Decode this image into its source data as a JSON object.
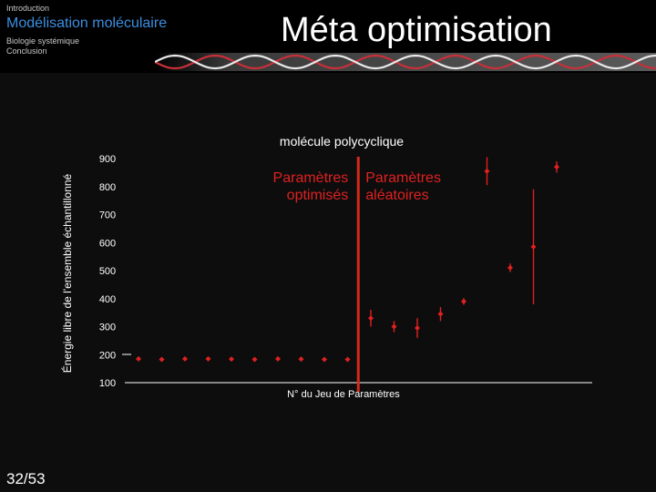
{
  "nav": {
    "intro": "Introduction",
    "active": "Modélisation moléculaire",
    "bio": "Biologie systémique",
    "conclusion": "Conclusion"
  },
  "slide": {
    "title": "Méta optimisation",
    "page": "32/53"
  },
  "chart_data": {
    "type": "scatter",
    "title": "molécule polycyclique",
    "xlabel": "N° du Jeu de Paramètres",
    "ylabel": "Énergie libre de l'ensemble échantillonné",
    "ylim": [
      100,
      900
    ],
    "yticks": [
      "900",
      "800",
      "700",
      "600",
      "500",
      "400",
      "300",
      "200",
      "100"
    ],
    "grid": false,
    "annotations": {
      "left": "Paramètres optimisés",
      "right": "Paramètres aléatoires"
    },
    "split_after_index": 10,
    "series": [
      {
        "x": [
          1,
          2,
          3,
          4,
          5,
          6,
          7,
          8,
          9,
          10,
          11,
          12,
          13,
          14,
          15,
          16,
          17,
          18,
          19
        ],
        "y": [
          185,
          183,
          185,
          185,
          184,
          183,
          185,
          184,
          183,
          183,
          330,
          300,
          295,
          345,
          390,
          855,
          510,
          585,
          870
        ],
        "err": [
          3,
          3,
          3,
          3,
          3,
          3,
          3,
          3,
          3,
          3,
          30,
          20,
          35,
          25,
          12,
          50,
          15,
          205,
          20
        ]
      }
    ],
    "colors": {
      "marker": "#e02020",
      "divider": "#d42a1a",
      "axis": "#ffffff",
      "title": "#ffffff"
    }
  }
}
